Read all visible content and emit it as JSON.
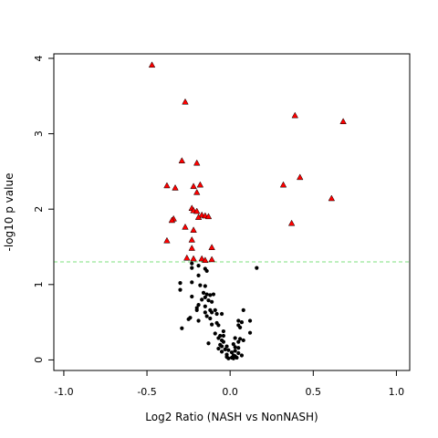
{
  "chart_data": {
    "type": "scatter",
    "title": "",
    "xlabel": "Log2 Ratio (NASH vs NonNASH)",
    "ylabel": "-log10 p value",
    "xlim": [
      -1.06,
      1.08
    ],
    "ylim": [
      -0.14,
      4.06
    ],
    "x_ticks": [
      -1.0,
      -0.5,
      0.0,
      0.5,
      1.0
    ],
    "x_tick_labels": [
      "-1.0",
      "-0.5",
      "0.0",
      "0.5",
      "1.0"
    ],
    "y_ticks": [
      0,
      1,
      2,
      3,
      4
    ],
    "y_tick_labels": [
      "0",
      "1",
      "2",
      "3",
      "4"
    ],
    "threshold": {
      "y": 1.3,
      "color": "#7ee07e",
      "style": "dashed"
    },
    "grid": false,
    "series": [
      {
        "marker": "triangle",
        "color": "#ff0000",
        "points": [
          [
            -0.47,
            3.91
          ],
          [
            -0.27,
            3.42
          ],
          [
            0.39,
            3.24
          ],
          [
            0.68,
            3.16
          ],
          [
            -0.29,
            2.64
          ],
          [
            -0.2,
            2.61
          ],
          [
            0.42,
            2.42
          ],
          [
            -0.38,
            2.31
          ],
          [
            -0.33,
            2.28
          ],
          [
            -0.22,
            2.3
          ],
          [
            -0.18,
            2.32
          ],
          [
            0.32,
            2.32
          ],
          [
            -0.2,
            2.22
          ],
          [
            0.61,
            2.14
          ],
          [
            -0.23,
            2.01
          ],
          [
            -0.22,
            1.98
          ],
          [
            -0.2,
            1.97
          ],
          [
            -0.17,
            1.92
          ],
          [
            -0.15,
            1.91
          ],
          [
            -0.13,
            1.9
          ],
          [
            -0.19,
            1.89
          ],
          [
            -0.34,
            1.87
          ],
          [
            -0.35,
            1.85
          ],
          [
            0.37,
            1.81
          ],
          [
            -0.27,
            1.76
          ],
          [
            -0.22,
            1.72
          ],
          [
            -0.38,
            1.58
          ],
          [
            -0.23,
            1.59
          ],
          [
            -0.11,
            1.49
          ],
          [
            -0.23,
            1.48
          ],
          [
            -0.26,
            1.35
          ],
          [
            -0.22,
            1.34
          ],
          [
            -0.17,
            1.34
          ],
          [
            -0.15,
            1.32
          ],
          [
            -0.11,
            1.33
          ]
        ]
      },
      {
        "marker": "circle",
        "color": "#000000",
        "points": [
          [
            -0.23,
            1.28
          ],
          [
            -0.19,
            1.25
          ],
          [
            -0.23,
            1.22
          ],
          [
            0.16,
            1.22
          ],
          [
            -0.15,
            1.21
          ],
          [
            -0.14,
            1.18
          ],
          [
            -0.19,
            1.12
          ],
          [
            -0.23,
            1.03
          ],
          [
            -0.3,
            1.02
          ],
          [
            -0.18,
            0.99
          ],
          [
            -0.15,
            0.98
          ],
          [
            -0.3,
            0.93
          ],
          [
            -0.16,
            0.89
          ],
          [
            -0.14,
            0.87
          ],
          [
            -0.12,
            0.86
          ],
          [
            -0.1,
            0.87
          ],
          [
            -0.23,
            0.84
          ],
          [
            -0.15,
            0.83
          ],
          [
            -0.17,
            0.8
          ],
          [
            -0.13,
            0.79
          ],
          [
            -0.11,
            0.77
          ],
          [
            -0.19,
            0.73
          ],
          [
            -0.15,
            0.71
          ],
          [
            -0.2,
            0.69
          ],
          [
            -0.2,
            0.66
          ],
          [
            -0.12,
            0.66
          ],
          [
            -0.09,
            0.66
          ],
          [
            0.08,
            0.66
          ],
          [
            -0.15,
            0.63
          ],
          [
            -0.11,
            0.63
          ],
          [
            -0.08,
            0.61
          ],
          [
            -0.05,
            0.61
          ],
          [
            -0.14,
            0.58
          ],
          [
            -0.24,
            0.56
          ],
          [
            -0.12,
            0.55
          ],
          [
            -0.25,
            0.54
          ],
          [
            -0.19,
            0.52
          ],
          [
            0.05,
            0.52
          ],
          [
            0.12,
            0.52
          ],
          [
            0.07,
            0.5
          ],
          [
            -0.08,
            0.49
          ],
          [
            -0.11,
            0.47
          ],
          [
            -0.07,
            0.46
          ],
          [
            0.05,
            0.46
          ],
          [
            0.06,
            0.43
          ],
          [
            -0.29,
            0.42
          ],
          [
            -0.04,
            0.38
          ],
          [
            0.12,
            0.36
          ],
          [
            -0.09,
            0.35
          ],
          [
            -0.06,
            0.32
          ],
          [
            -0.04,
            0.32
          ],
          [
            -0.07,
            0.29
          ],
          [
            0.03,
            0.29
          ],
          [
            0.06,
            0.28
          ],
          [
            -0.05,
            0.26
          ],
          [
            0.08,
            0.26
          ],
          [
            -0.04,
            0.24
          ],
          [
            0.05,
            0.24
          ],
          [
            -0.13,
            0.22
          ],
          [
            0.02,
            0.21
          ],
          [
            -0.06,
            0.2
          ],
          [
            -0.05,
            0.18
          ],
          [
            -0.02,
            0.18
          ],
          [
            0.03,
            0.17
          ],
          [
            0.05,
            0.16
          ],
          [
            -0.07,
            0.15
          ],
          [
            -0.03,
            0.14
          ],
          [
            -0.01,
            0.13
          ],
          [
            0.03,
            0.12
          ],
          [
            -0.05,
            0.11
          ],
          [
            0.01,
            0.1
          ],
          [
            0.05,
            0.09
          ],
          [
            -0.02,
            0.07
          ],
          [
            0.02,
            0.06
          ],
          [
            0.07,
            0.06
          ],
          [
            0.03,
            0.05
          ],
          [
            -0.02,
            0.04
          ],
          [
            0.01,
            0.03
          ],
          [
            0.04,
            0.03
          ],
          [
            -0.01,
            0.02
          ],
          [
            0.02,
            0.02
          ]
        ]
      }
    ]
  }
}
